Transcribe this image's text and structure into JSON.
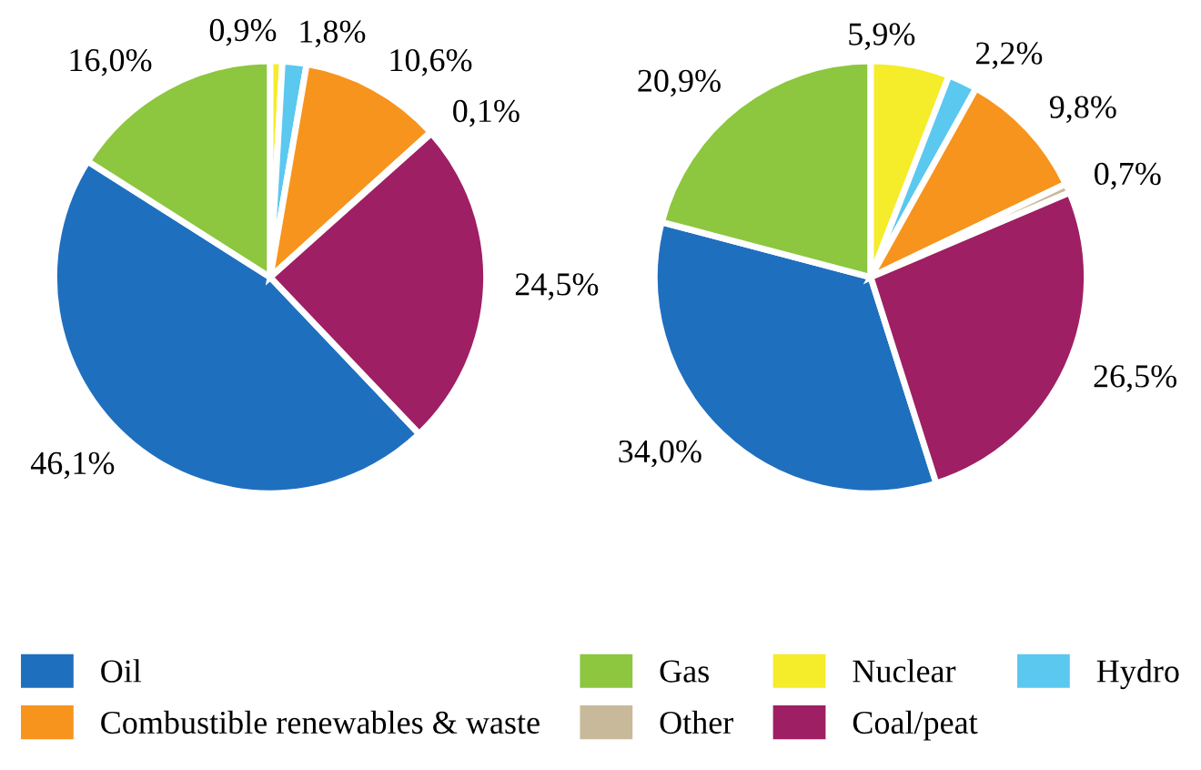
{
  "chart_data": [
    {
      "type": "pie",
      "categories": [
        "Oil",
        "Gas",
        "Nuclear",
        "Hydro",
        "Combustible renewables & waste",
        "Other",
        "Coal/peat"
      ],
      "values": [
        46.1,
        16.0,
        0.9,
        1.8,
        10.6,
        0.1,
        24.5
      ],
      "value_labels": [
        "46,1%",
        "16,0%",
        "0,9%",
        "1,8%",
        "10,6%",
        "0,1%",
        "24,5%"
      ],
      "colors": [
        "#1f6fbf",
        "#8dc63f",
        "#f5ec2a",
        "#5bc8f0",
        "#f7941d",
        "#c8b99a",
        "#9e1f63"
      ],
      "legend": "bottom"
    },
    {
      "type": "pie",
      "categories": [
        null,
        null,
        null,
        null,
        null,
        null,
        null
      ],
      "values": [
        34.0,
        20.9,
        5.9,
        2.2,
        9.8,
        0.7,
        26.5
      ],
      "value_labels": [
        "34,0%",
        "20,9%",
        "5,9%",
        "2,2%",
        "9,8%",
        "0,7%",
        "26,5%"
      ],
      "colors": [
        "#1f6fbf",
        "#8dc63f",
        "#f5ec2a",
        "#5bc8f0",
        "#f7941d",
        "#c8b99a",
        "#9e1f63"
      ]
    }
  ]
}
